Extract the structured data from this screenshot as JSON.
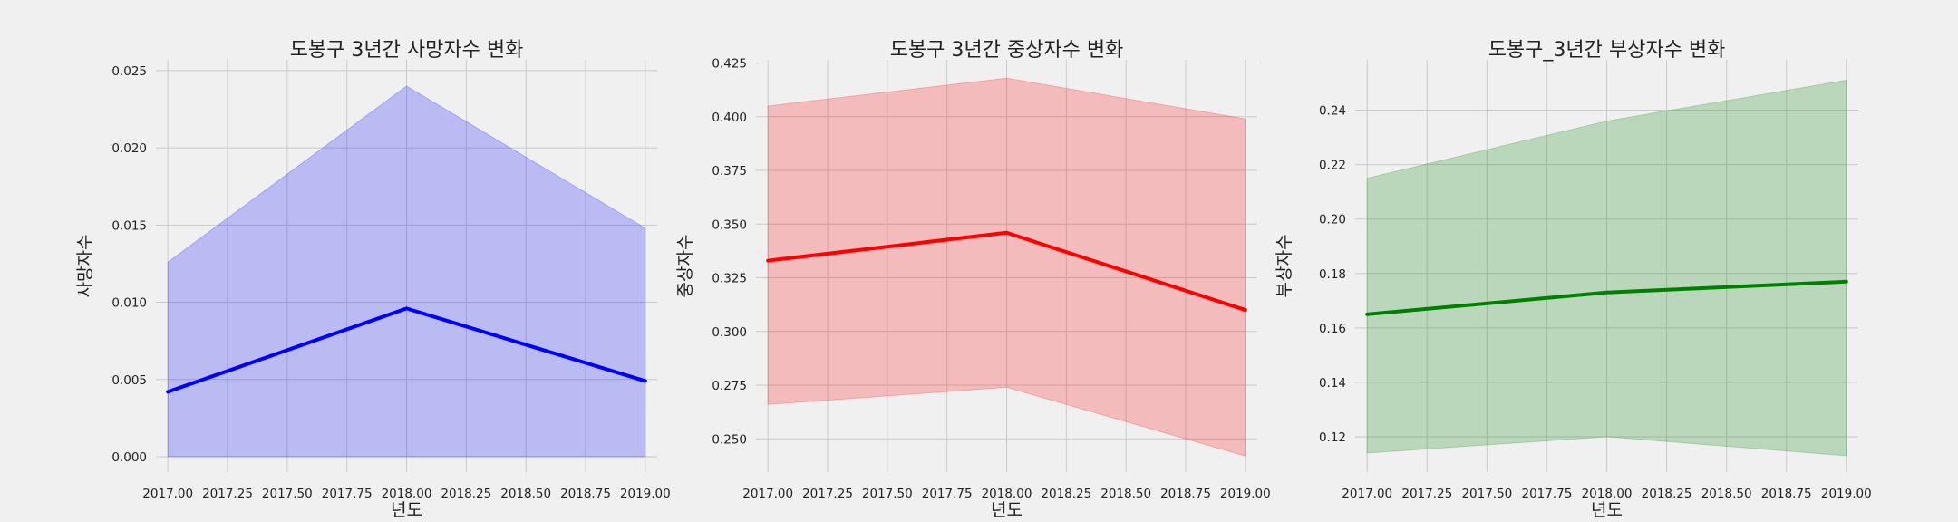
{
  "chart_data": [
    {
      "type": "line",
      "title": "도봉구 3년간 사망자수 변화",
      "xlabel": "년도",
      "ylabel": "사망자수",
      "xlim": [
        2016.95,
        2019.05
      ],
      "ylim": [
        -0.001,
        0.0257
      ],
      "xticks": [
        2017.0,
        2017.25,
        2017.5,
        2017.75,
        2018.0,
        2018.25,
        2018.5,
        2018.75,
        2019.0
      ],
      "yticks": [
        0.0,
        0.005,
        0.01,
        0.015,
        0.02,
        0.025
      ],
      "x": [
        2017,
        2018,
        2019
      ],
      "series": [
        {
          "values": [
            0.0042,
            0.0096,
            0.0049
          ],
          "ci_upper": [
            0.0126,
            0.024,
            0.0148
          ],
          "ci_lower": [
            0.0,
            0.0,
            0.0
          ],
          "color": "#0000ff",
          "band_color": "#0000ff"
        }
      ],
      "grid": true
    },
    {
      "type": "line",
      "title": "도봉구 3년간 중상자수 변화",
      "xlabel": "년도",
      "ylabel": "중상자수",
      "xlim": [
        2016.95,
        2019.05
      ],
      "ylim": [
        0.2345,
        0.4265
      ],
      "xticks": [
        2017.0,
        2017.25,
        2017.5,
        2017.75,
        2018.0,
        2018.25,
        2018.5,
        2018.75,
        2019.0
      ],
      "yticks": [
        0.25,
        0.275,
        0.3,
        0.325,
        0.35,
        0.375,
        0.4,
        0.425
      ],
      "x": [
        2017,
        2018,
        2019
      ],
      "series": [
        {
          "values": [
            0.333,
            0.346,
            0.31
          ],
          "ci_upper": [
            0.405,
            0.418,
            0.399
          ],
          "ci_lower": [
            0.266,
            0.274,
            0.242
          ],
          "color": "#ff0000",
          "band_color": "#ff0000"
        }
      ],
      "grid": true
    },
    {
      "type": "line",
      "title": "도봉구_3년간 부상자수 변화",
      "xlabel": "년도",
      "ylabel": "부상자수",
      "xlim": [
        2016.95,
        2019.05
      ],
      "ylim": [
        0.107,
        0.2585
      ],
      "xticks": [
        2017.0,
        2017.25,
        2017.5,
        2017.75,
        2018.0,
        2018.25,
        2018.5,
        2018.75,
        2019.0
      ],
      "yticks": [
        0.12,
        0.14,
        0.16,
        0.18,
        0.2,
        0.22,
        0.24
      ],
      "x": [
        2017,
        2018,
        2019
      ],
      "series": [
        {
          "values": [
            0.165,
            0.173,
            0.177
          ],
          "ci_upper": [
            0.215,
            0.236,
            0.251
          ],
          "ci_lower": [
            0.114,
            0.12,
            0.113
          ],
          "color": "#008000",
          "band_color": "#008000"
        }
      ],
      "grid": true
    }
  ]
}
